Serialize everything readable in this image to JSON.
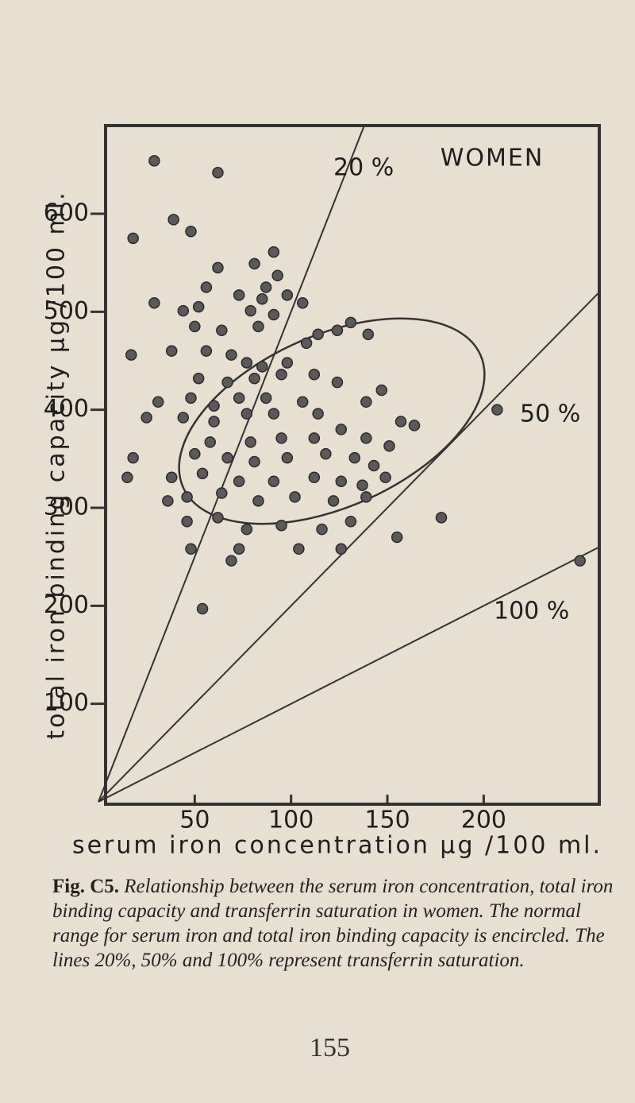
{
  "chart_data": {
    "type": "scatter",
    "title": "WOMEN",
    "xlabel": "serum iron concentration μg /100 ml.",
    "ylabel": "total iron binding capacity μg /100 ml.",
    "xlim": [
      0,
      260
    ],
    "ylim": [
      0,
      690
    ],
    "xticks": [
      50,
      100,
      150,
      200
    ],
    "yticks": [
      100,
      200,
      300,
      400,
      500,
      600
    ],
    "color": "#5a5a5a",
    "x": [
      29,
      62,
      39,
      48,
      18,
      62,
      81,
      91,
      56,
      73,
      87,
      93,
      29,
      44,
      52,
      79,
      85,
      98,
      50,
      64,
      83,
      91,
      106,
      124,
      131,
      140,
      108,
      114,
      17,
      38,
      56,
      69,
      77,
      85,
      98,
      52,
      67,
      81,
      95,
      112,
      124,
      147,
      31,
      48,
      60,
      73,
      87,
      106,
      139,
      207,
      25,
      44,
      60,
      77,
      91,
      114,
      126,
      157,
      58,
      79,
      95,
      112,
      139,
      151,
      18,
      50,
      67,
      81,
      98,
      118,
      133,
      143,
      15,
      38,
      54,
      73,
      91,
      112,
      126,
      137,
      149,
      36,
      46,
      64,
      83,
      102,
      122,
      139,
      62,
      77,
      95,
      116,
      131,
      178,
      155,
      48,
      46,
      73,
      104,
      69,
      126,
      54,
      250,
      164
    ],
    "values": [
      654,
      642,
      594,
      582,
      575,
      545,
      549,
      561,
      525,
      517,
      525,
      537,
      509,
      501,
      505,
      501,
      513,
      517,
      485,
      481,
      485,
      497,
      509,
      481,
      489,
      477,
      468,
      477,
      456,
      460,
      460,
      456,
      448,
      444,
      448,
      432,
      428,
      432,
      436,
      436,
      428,
      420,
      408,
      412,
      404,
      412,
      412,
      408,
      408,
      400,
      392,
      392,
      388,
      396,
      396,
      396,
      380,
      388,
      367,
      367,
      371,
      371,
      371,
      363,
      351,
      355,
      351,
      347,
      351,
      355,
      351,
      343,
      331,
      331,
      335,
      327,
      327,
      331,
      327,
      323,
      331,
      307,
      311,
      315,
      307,
      311,
      307,
      311,
      290,
      278,
      282,
      278,
      286,
      290,
      270,
      258,
      286,
      258,
      258,
      246,
      258,
      197,
      246,
      384
    ],
    "lines": [
      {
        "label": "20 %",
        "saturation": 20
      },
      {
        "label": "50 %",
        "saturation": 50
      },
      {
        "label": "100 %",
        "saturation": 100
      }
    ]
  },
  "figure_label": "Fig. C5.",
  "caption": "Relationship between the serum iron concentration, total iron binding capacity and transferrin saturation in women. The normal range for serum iron and total iron binding capacity is encircled. The lines 20%, 50% and 100% represent transferrin saturation.",
  "page_number": "155"
}
